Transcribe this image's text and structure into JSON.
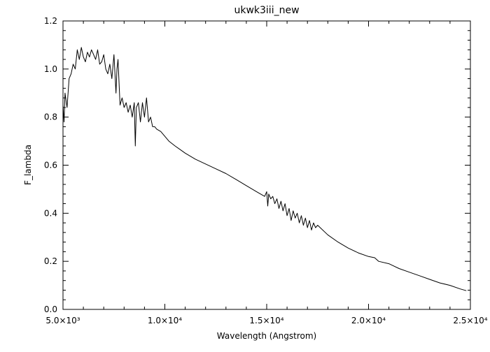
{
  "chart_data": {
    "type": "line",
    "title": "ukwk3iii_new",
    "xlabel": "Wavelength (Angstrom)",
    "ylabel": "F_lambda",
    "xlim": [
      5000,
      25000
    ],
    "ylim": [
      0.0,
      1.2
    ],
    "grid": false,
    "legend": "none",
    "line_color": "#000000",
    "background_color": "#ffffff",
    "x_ticks": [
      {
        "value": 5000,
        "label": "5.0×10³"
      },
      {
        "value": 10000,
        "label": "1.0×10⁴"
      },
      {
        "value": 15000,
        "label": "1.5×10⁴"
      },
      {
        "value": 20000,
        "label": "2.0×10⁴"
      },
      {
        "value": 25000,
        "label": "2.5×10⁴"
      }
    ],
    "y_ticks": [
      {
        "value": 0.0,
        "label": "0.0"
      },
      {
        "value": 0.2,
        "label": "0.2"
      },
      {
        "value": 0.4,
        "label": "0.4"
      },
      {
        "value": 0.6,
        "label": "0.6"
      },
      {
        "value": 0.8,
        "label": "0.8"
      },
      {
        "value": 1.0,
        "label": "1.0"
      },
      {
        "value": 1.2,
        "label": "1.2"
      }
    ],
    "series": [
      {
        "x": [
          5000,
          5050,
          5100,
          5200,
          5300,
          5400,
          5500,
          5600,
          5700,
          5800,
          5900,
          6000,
          6100,
          6200,
          6300,
          6400,
          6500,
          6600,
          6700,
          6800,
          6900,
          7000,
          7100,
          7200,
          7300,
          7400,
          7500,
          7600,
          7650,
          7700,
          7800,
          7900,
          8000,
          8100,
          8200,
          8300,
          8400,
          8500,
          8550,
          8600,
          8700,
          8800,
          8900,
          9000,
          9100,
          9200,
          9300,
          9400,
          9500,
          9600,
          9800,
          10000,
          10200,
          10500,
          11000,
          11500,
          12000,
          12500,
          13000,
          13500,
          14000,
          14500,
          14900,
          15000,
          15050,
          15100,
          15200,
          15300,
          15400,
          15500,
          15600,
          15700,
          15800,
          15900,
          16000,
          16100,
          16200,
          16300,
          16400,
          16500,
          16600,
          16700,
          16800,
          16900,
          17000,
          17100,
          17200,
          17300,
          17400,
          17500,
          18000,
          18500,
          19000,
          19500,
          20000,
          20300,
          20500,
          21000,
          21500,
          22000,
          22500,
          23000,
          23500,
          24000,
          24500,
          24800
        ],
        "y": [
          0.85,
          0.78,
          0.9,
          0.84,
          0.96,
          0.98,
          1.02,
          1.0,
          1.08,
          1.04,
          1.09,
          1.05,
          1.03,
          1.07,
          1.05,
          1.08,
          1.06,
          1.04,
          1.08,
          1.02,
          1.03,
          1.06,
          1.0,
          0.98,
          1.02,
          0.96,
          1.06,
          0.9,
          1.0,
          1.04,
          0.85,
          0.88,
          0.84,
          0.86,
          0.82,
          0.85,
          0.8,
          0.86,
          0.68,
          0.84,
          0.86,
          0.78,
          0.86,
          0.8,
          0.88,
          0.78,
          0.8,
          0.76,
          0.76,
          0.75,
          0.74,
          0.72,
          0.7,
          0.68,
          0.65,
          0.625,
          0.605,
          0.585,
          0.565,
          0.54,
          0.515,
          0.49,
          0.47,
          0.49,
          0.43,
          0.48,
          0.46,
          0.47,
          0.44,
          0.46,
          0.42,
          0.45,
          0.41,
          0.44,
          0.39,
          0.42,
          0.37,
          0.41,
          0.38,
          0.4,
          0.36,
          0.39,
          0.35,
          0.38,
          0.34,
          0.37,
          0.33,
          0.36,
          0.34,
          0.35,
          0.31,
          0.28,
          0.255,
          0.235,
          0.22,
          0.215,
          0.2,
          0.19,
          0.17,
          0.155,
          0.14,
          0.125,
          0.11,
          0.1,
          0.085,
          0.078
        ]
      }
    ]
  }
}
